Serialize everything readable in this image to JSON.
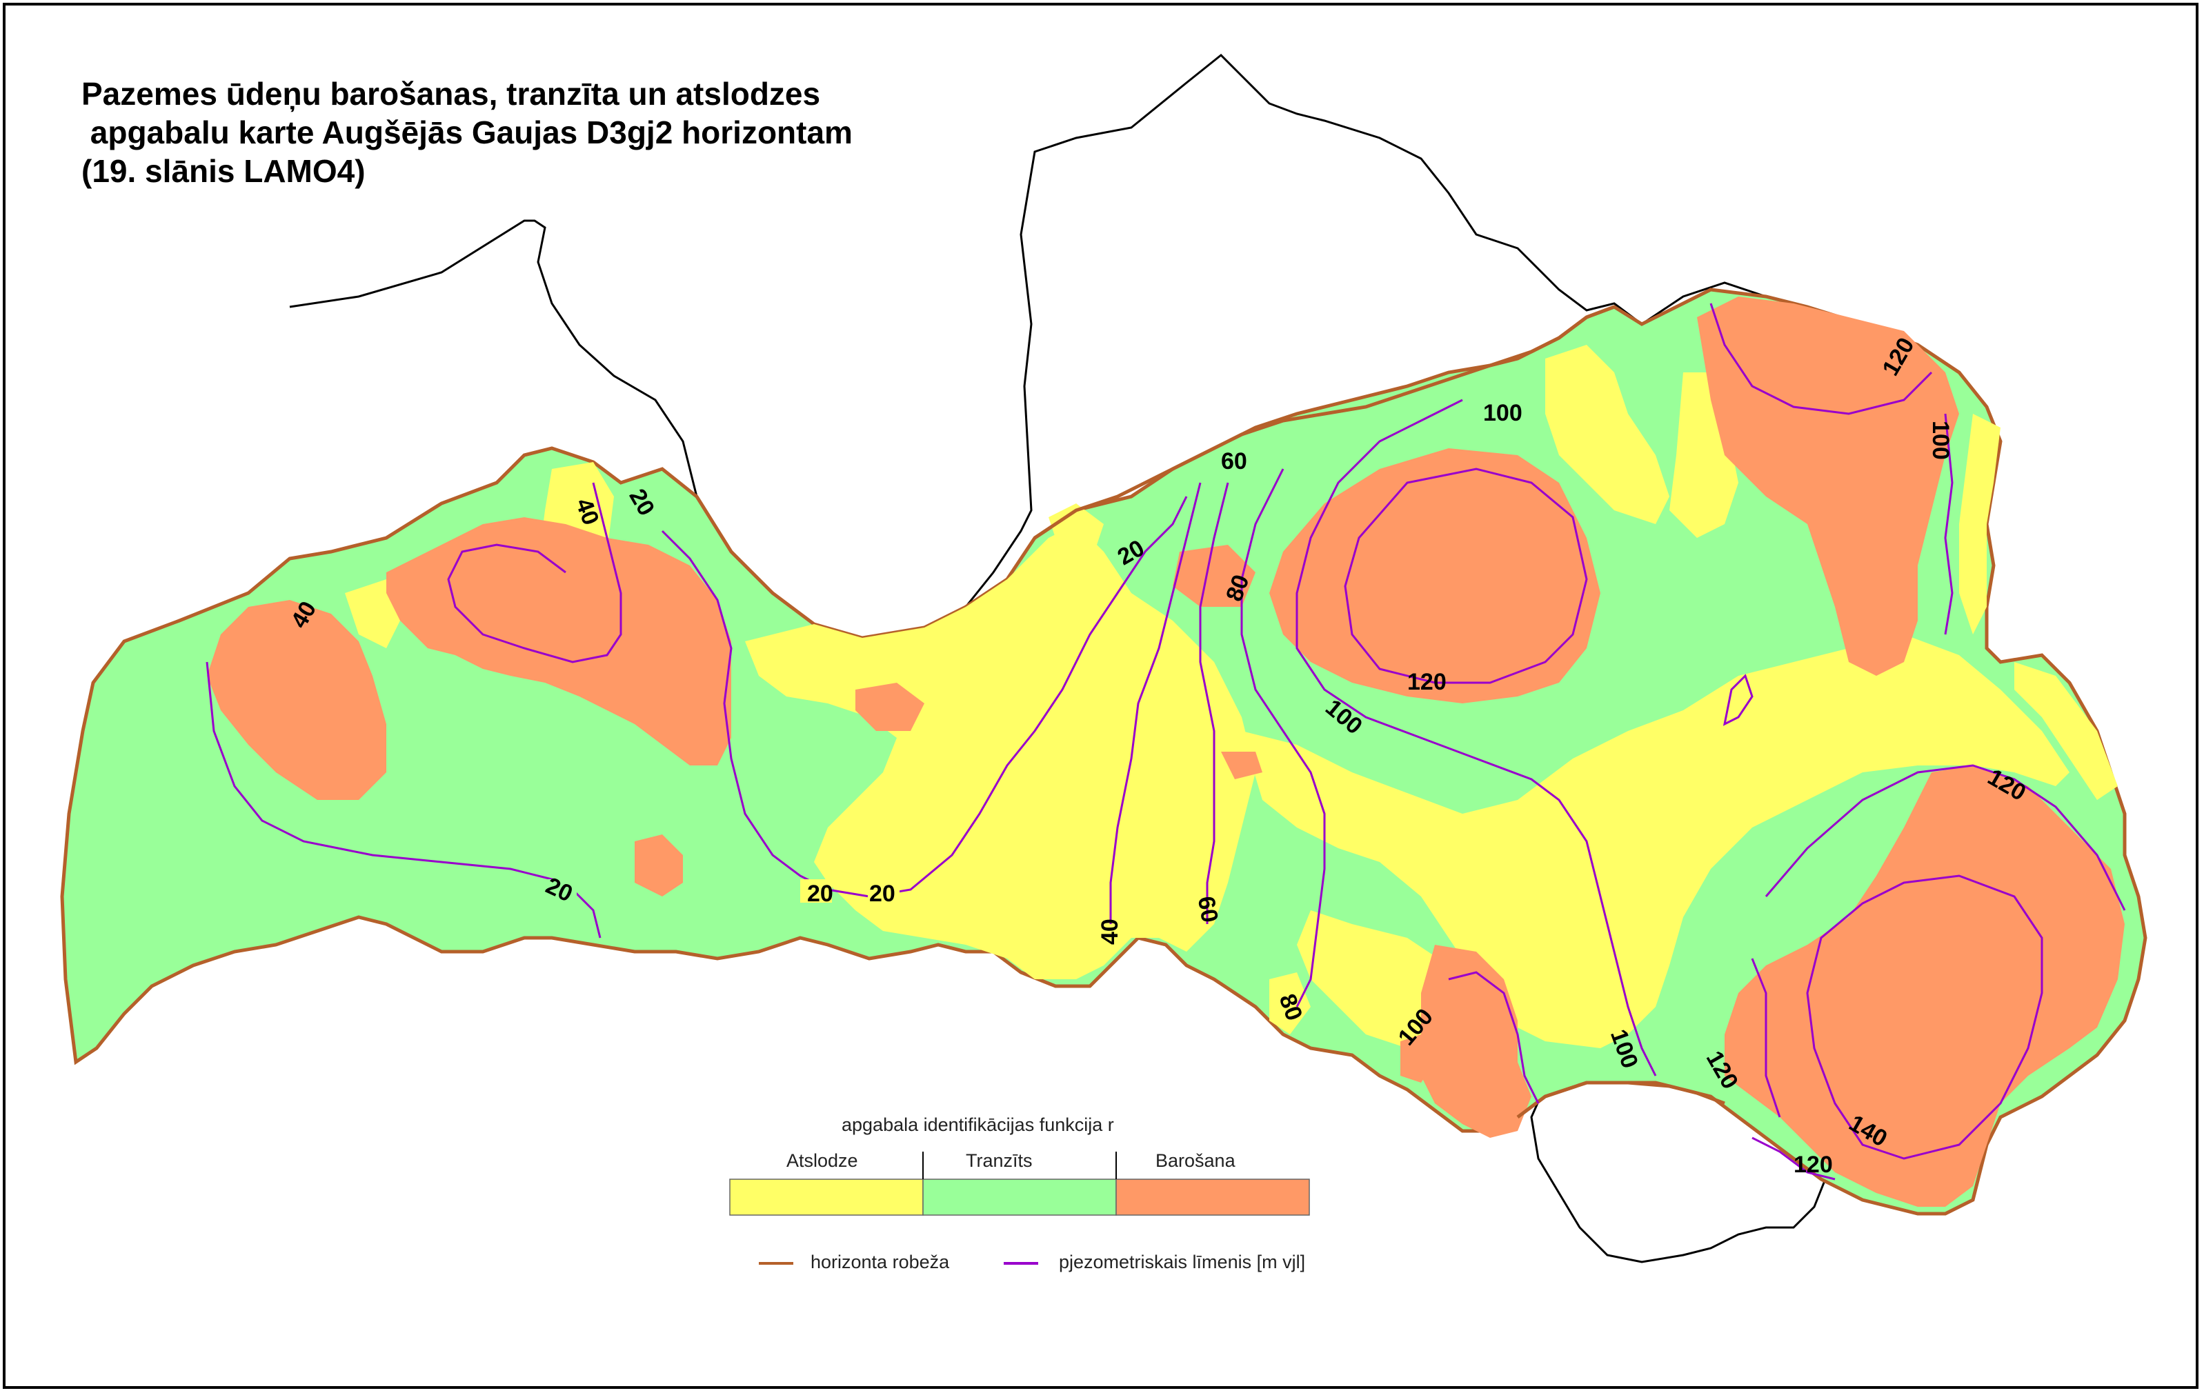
{
  "title": {
    "line1": "Pazemes ūdeņu barošanas, tranzīta un atslodzes",
    "line2": " apgabalu karte Augšējās Gaujas D3gj2 horizontam",
    "line3": "(19. slānis LAMO4)"
  },
  "legend": {
    "title": "apgabala identifikācijas funkcija r",
    "categories": [
      {
        "label": "Atslodze",
        "color": "#ffff66"
      },
      {
        "label": "Tranzīts",
        "color": "#99ff99"
      },
      {
        "label": "Barošana",
        "color": "#ff9966"
      }
    ],
    "lines": [
      {
        "label": "horizonta robeža",
        "color": "#b5602a"
      },
      {
        "label": "pjezometriskais līmenis [m vjl]",
        "color": "#9900cc"
      }
    ]
  },
  "isolines": {
    "labels": [
      "20",
      "20",
      "20",
      "20",
      "20",
      "40",
      "40",
      "40",
      "60",
      "60",
      "80",
      "80",
      "100",
      "100",
      "100",
      "100",
      "100",
      "120",
      "120",
      "120",
      "120",
      "120",
      "140"
    ]
  },
  "colors": {
    "atslodze": "#ffff66",
    "tranzits": "#99ff99",
    "barosana": "#ff9966",
    "boundary": "#b5602a",
    "isoline": "#9900cc"
  }
}
